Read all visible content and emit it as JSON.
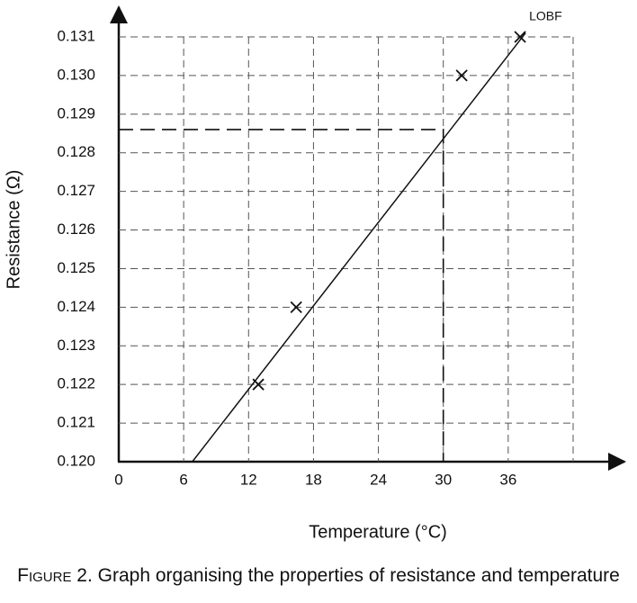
{
  "chart_data": {
    "type": "scatter",
    "x_label": "Temperature (°C)",
    "y_label": "Resistance (Ω)",
    "caption_label": "Figure 2.",
    "caption": "Graph organising the properties of resistance and temperature",
    "xlim": [
      0,
      42
    ],
    "ylim": [
      0.12,
      0.131
    ],
    "xticks": [
      0,
      6,
      12,
      18,
      24,
      30,
      36
    ],
    "yticks": [
      {
        "value": 0.12,
        "label": "0.120"
      },
      0.121,
      0.122,
      0.123,
      0.124,
      0.125,
      0.126,
      0.127,
      0.128,
      0.129,
      {
        "value": 0.13,
        "label": "0.130"
      },
      0.131
    ],
    "grid": true,
    "color": "#111111",
    "x": [
      12.9,
      16.4,
      31.7,
      37.1
    ],
    "values": [
      0.122,
      0.124,
      0.13,
      0.131
    ],
    "fit_line": {
      "label": "LOBF",
      "x": [
        6.8,
        37.6
      ],
      "y": [
        0.12,
        0.1311
      ]
    },
    "reading": {
      "x": 30,
      "y": 0.1286
    }
  }
}
